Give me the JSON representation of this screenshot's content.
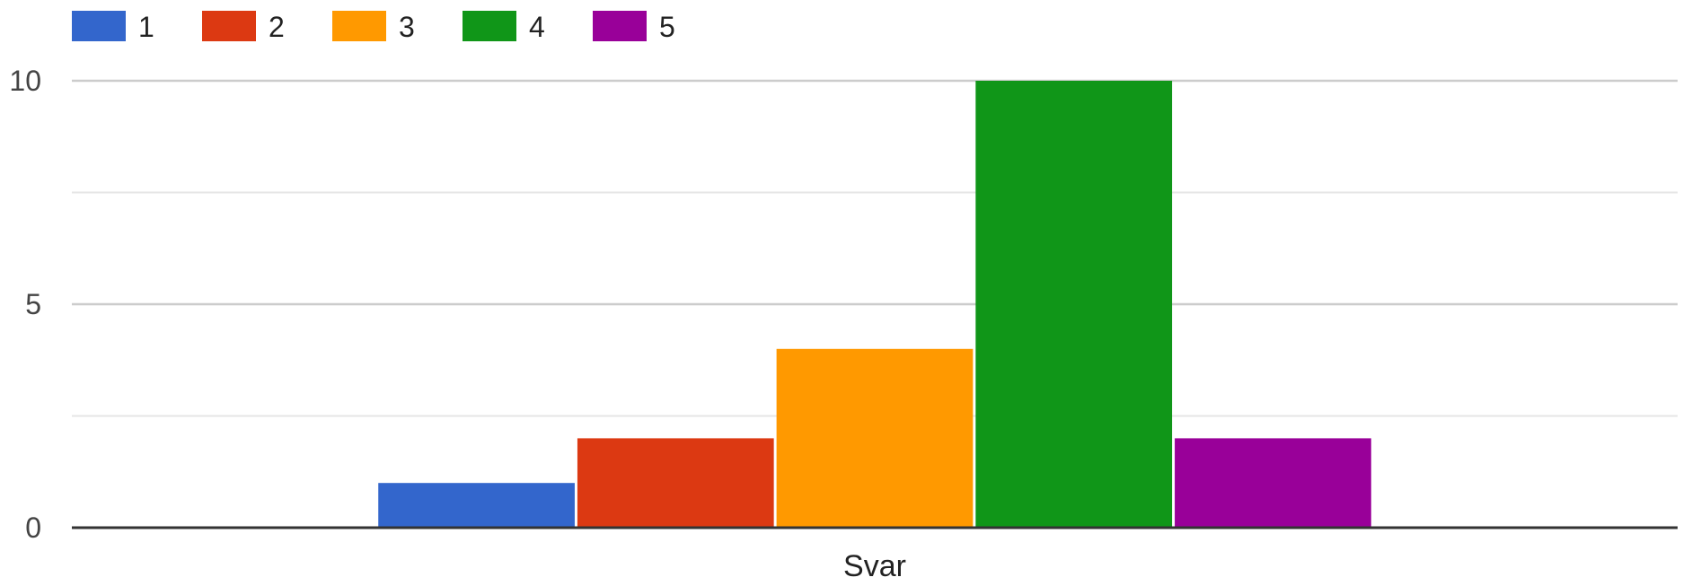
{
  "chart_data": {
    "type": "bar",
    "categories": [
      "Svar"
    ],
    "series": [
      {
        "name": "1",
        "values": [
          1
        ],
        "color": "#3366cc"
      },
      {
        "name": "2",
        "values": [
          2
        ],
        "color": "#dc3912"
      },
      {
        "name": "3",
        "values": [
          4
        ],
        "color": "#ff9900"
      },
      {
        "name": "4",
        "values": [
          10
        ],
        "color": "#109618"
      },
      {
        "name": "5",
        "values": [
          2
        ],
        "color": "#990099"
      }
    ],
    "title": "",
    "xlabel": "",
    "ylabel": "",
    "ylim": [
      0,
      10
    ],
    "yticks": [
      0,
      5,
      10
    ],
    "grid": true,
    "legend_position": "top-left"
  }
}
